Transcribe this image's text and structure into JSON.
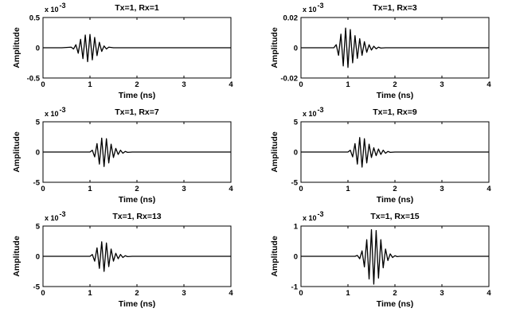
{
  "chart_data": [
    {
      "type": "line",
      "title": "Tx=1, Rx=1",
      "xlabel": "Time (ns)",
      "ylabel": "Amplitude",
      "multiplier": "x 10",
      "exponent": "-3",
      "xlim": [
        0,
        4
      ],
      "ylim": [
        -0.5,
        0.5
      ],
      "xticks": [
        "0",
        "1",
        "2",
        "3",
        "4"
      ],
      "yticks": [
        "-0.5",
        "0",
        "0.5"
      ],
      "ytick_values": [
        -0.5,
        0,
        0.5
      ],
      "grid": false,
      "series": [
        {
          "x": [
            0,
            0.4,
            0.6,
            0.65,
            0.7,
            0.75,
            0.8,
            0.85,
            0.9,
            0.95,
            1.0,
            1.05,
            1.1,
            1.15,
            1.2,
            1.25,
            1.3,
            1.35,
            1.4,
            1.5,
            1.6,
            4
          ],
          "y": [
            0,
            0,
            0.01,
            -0.02,
            0.05,
            -0.09,
            0.14,
            -0.18,
            0.21,
            -0.23,
            0.22,
            -0.2,
            0.17,
            -0.13,
            0.09,
            -0.06,
            0.03,
            -0.02,
            0.01,
            0,
            0,
            0
          ]
        }
      ]
    },
    {
      "type": "line",
      "title": "Tx=1, Rx=3",
      "xlabel": "Time (ns)",
      "ylabel": "Amplitude",
      "multiplier": "x 10",
      "exponent": "-3",
      "xlim": [
        0,
        4
      ],
      "ylim": [
        -0.02,
        0.02
      ],
      "xticks": [
        "0",
        "1",
        "2",
        "3",
        "4"
      ],
      "yticks": [
        "-0.02",
        "0",
        "0.02"
      ],
      "ytick_values": [
        -0.02,
        0,
        0.02
      ],
      "grid": false,
      "series": [
        {
          "x": [
            0,
            0.7,
            0.75,
            0.8,
            0.85,
            0.9,
            0.95,
            1.0,
            1.05,
            1.1,
            1.15,
            1.2,
            1.25,
            1.3,
            1.35,
            1.4,
            1.45,
            1.5,
            1.55,
            1.6,
            1.65,
            1.7,
            1.8,
            4
          ],
          "y": [
            0,
            0,
            0.002,
            -0.005,
            0.009,
            -0.012,
            0.013,
            -0.013,
            0.012,
            -0.01,
            0.008,
            -0.007,
            0.006,
            -0.005,
            0.004,
            -0.003,
            0.002,
            -0.0015,
            0.001,
            -0.0007,
            0.0004,
            -0.0002,
            0,
            0
          ]
        }
      ]
    },
    {
      "type": "line",
      "title": "Tx=1, Rx=7",
      "xlabel": "Time (ns)",
      "ylabel": "Amplitude",
      "multiplier": "x 10",
      "exponent": "-3",
      "xlim": [
        0,
        4
      ],
      "ylim": [
        -5,
        5
      ],
      "xticks": [
        "0",
        "1",
        "2",
        "3",
        "4"
      ],
      "yticks": [
        "-5",
        "0",
        "5"
      ],
      "ytick_values": [
        -5,
        0,
        5
      ],
      "grid": false,
      "series": [
        {
          "x": [
            0,
            1.0,
            1.05,
            1.1,
            1.15,
            1.2,
            1.25,
            1.3,
            1.35,
            1.4,
            1.45,
            1.5,
            1.55,
            1.6,
            1.65,
            1.7,
            1.75,
            1.8,
            1.9,
            4
          ],
          "y": [
            0,
            0,
            0.3,
            -0.8,
            1.4,
            -2.0,
            2.3,
            -2.4,
            2.2,
            -1.8,
            1.3,
            -0.9,
            0.6,
            -0.4,
            0.3,
            -0.2,
            0.1,
            -0.05,
            0,
            0
          ]
        }
      ]
    },
    {
      "type": "line",
      "title": "Tx=1, Rx=9",
      "xlabel": "Time (ns)",
      "ylabel": "Amplitude",
      "multiplier": "x 10",
      "exponent": "-3",
      "xlim": [
        0,
        4
      ],
      "ylim": [
        -5,
        5
      ],
      "xticks": [
        "0",
        "1",
        "2",
        "3",
        "4"
      ],
      "yticks": [
        "-5",
        "0",
        "5"
      ],
      "ytick_values": [
        -5,
        0,
        5
      ],
      "grid": false,
      "series": [
        {
          "x": [
            0,
            1.0,
            1.05,
            1.1,
            1.15,
            1.2,
            1.25,
            1.3,
            1.35,
            1.4,
            1.45,
            1.5,
            1.55,
            1.6,
            1.65,
            1.7,
            1.75,
            1.8,
            1.85,
            1.9,
            2.0,
            4
          ],
          "y": [
            0,
            0,
            0.3,
            -0.8,
            1.4,
            -2.0,
            2.4,
            -2.5,
            2.2,
            -1.8,
            1.3,
            -0.9,
            0.7,
            -0.6,
            0.5,
            -0.4,
            0.3,
            -0.2,
            0.1,
            -0.05,
            0,
            0
          ]
        }
      ]
    },
    {
      "type": "line",
      "title": "Tx=1, Rx=13",
      "xlabel": "Time (ns)",
      "ylabel": "Amplitude",
      "multiplier": "x 10",
      "exponent": "-3",
      "xlim": [
        0,
        4
      ],
      "ylim": [
        -5,
        5
      ],
      "xticks": [
        "0",
        "1",
        "2",
        "3",
        "4"
      ],
      "yticks": [
        "-5",
        "0",
        "5"
      ],
      "ytick_values": [
        -5,
        0,
        5
      ],
      "grid": false,
      "series": [
        {
          "x": [
            0,
            1.0,
            1.05,
            1.1,
            1.15,
            1.2,
            1.25,
            1.3,
            1.35,
            1.4,
            1.45,
            1.5,
            1.55,
            1.6,
            1.65,
            1.7,
            1.75,
            1.8,
            1.9,
            4
          ],
          "y": [
            0,
            0,
            0.3,
            -0.8,
            1.4,
            -2.0,
            2.4,
            -2.5,
            2.2,
            -1.7,
            1.2,
            -0.8,
            0.5,
            -0.4,
            0.3,
            -0.2,
            0.1,
            -0.05,
            0,
            0
          ]
        }
      ]
    },
    {
      "type": "line",
      "title": "Tx=1, Rx=15",
      "xlabel": "Time (ns)",
      "ylabel": "Amplitude",
      "multiplier": "x 10",
      "exponent": "-3",
      "xlim": [
        0,
        4
      ],
      "ylim": [
        -1,
        1
      ],
      "xticks": [
        "0",
        "1",
        "2",
        "3",
        "4"
      ],
      "yticks": [
        "-1",
        "0",
        "1"
      ],
      "ytick_values": [
        -1,
        0,
        1
      ],
      "grid": false,
      "series": [
        {
          "x": [
            0,
            1.15,
            1.2,
            1.25,
            1.3,
            1.35,
            1.4,
            1.45,
            1.5,
            1.55,
            1.6,
            1.65,
            1.7,
            1.75,
            1.8,
            1.85,
            1.9,
            1.95,
            2.0,
            2.05,
            2.1,
            2.2,
            4
          ],
          "y": [
            0,
            0,
            0.03,
            -0.08,
            0.18,
            -0.35,
            0.55,
            -0.75,
            0.88,
            -0.92,
            0.85,
            -0.72,
            0.55,
            -0.38,
            0.24,
            -0.14,
            0.08,
            -0.04,
            0.02,
            -0.01,
            0,
            0,
            0
          ]
        }
      ]
    }
  ]
}
